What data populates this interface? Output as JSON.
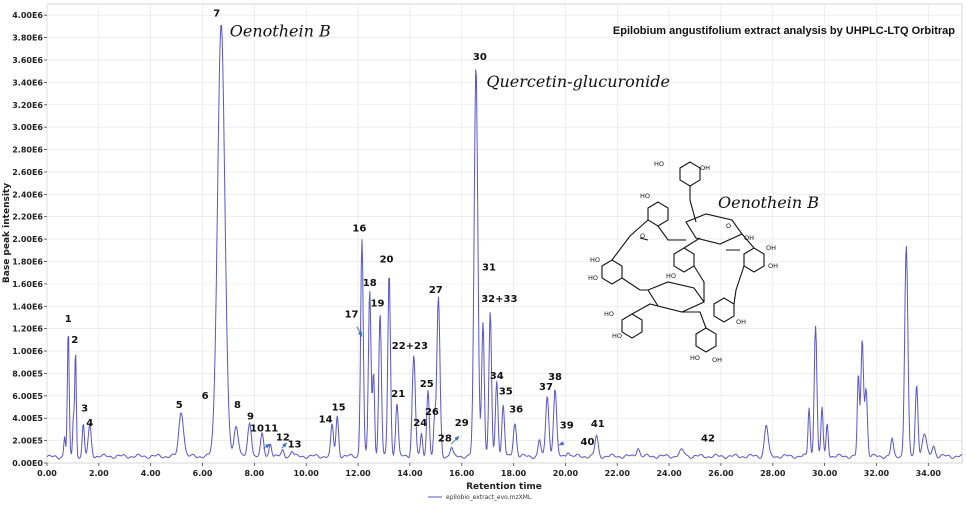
{
  "chart_data": {
    "type": "line",
    "title": "Epilobium angustifolium extract analysis by UHPLC-LTQ Orbitrap",
    "xlabel": "Retention time",
    "ylabel": "Base peak intensity",
    "xlim": [
      0,
      35.3
    ],
    "ylim": [
      0,
      4.1
    ],
    "x_ticks": [
      "0.00",
      "2.00",
      "4.00",
      "6.00",
      "8.00",
      "10.00",
      "12.00",
      "14.00",
      "16.00",
      "18.00",
      "20.00",
      "22.00",
      "24.00",
      "26.00",
      "28.00",
      "30.00",
      "32.00",
      "34.00"
    ],
    "y_ticks": [
      "0.00E0",
      "2.00E5",
      "4.00E5",
      "6.00E5",
      "8.00E5",
      "1.00E6",
      "1.20E6",
      "1.40E6",
      "1.60E6",
      "1.80E6",
      "2.00E6",
      "2.20E6",
      "2.40E6",
      "2.60E6",
      "2.80E6",
      "3.00E6",
      "3.20E6",
      "3.40E6",
      "3.60E6",
      "3.80E6",
      "4.00E6"
    ],
    "legend": [
      "epilobio_extract_evo.mzXML"
    ],
    "series_color": "#5a55c8",
    "baseline": 0.06,
    "peaks": [
      [
        0.68,
        0.18,
        0.03
      ],
      [
        0.82,
        1.12,
        0.035
      ],
      [
        1.02,
        0.35,
        0.03
      ],
      [
        1.1,
        0.95,
        0.03
      ],
      [
        1.4,
        0.28,
        0.04
      ],
      [
        1.65,
        0.27,
        0.06
      ],
      [
        5.18,
        0.4,
        0.09
      ],
      [
        6.72,
        3.86,
        0.14
      ],
      [
        7.3,
        0.28,
        0.08
      ],
      [
        7.82,
        0.3,
        0.07
      ],
      [
        8.3,
        0.19,
        0.06
      ],
      [
        8.62,
        0.12,
        0.05
      ],
      [
        9.1,
        0.05,
        0.05
      ],
      [
        9.45,
        0.05,
        0.05
      ],
      [
        11.0,
        0.28,
        0.05
      ],
      [
        11.2,
        0.36,
        0.05
      ],
      [
        12.15,
        1.95,
        0.05
      ],
      [
        12.45,
        1.48,
        0.05
      ],
      [
        12.6,
        0.75,
        0.04
      ],
      [
        12.85,
        1.28,
        0.05
      ],
      [
        13.2,
        1.65,
        0.05
      ],
      [
        13.5,
        0.48,
        0.05
      ],
      [
        14.15,
        0.9,
        0.06
      ],
      [
        14.45,
        0.2,
        0.04
      ],
      [
        14.7,
        0.6,
        0.05
      ],
      [
        14.95,
        0.3,
        0.04
      ],
      [
        15.1,
        1.42,
        0.06
      ],
      [
        15.6,
        0.08,
        0.05
      ],
      [
        16.55,
        3.48,
        0.07
      ],
      [
        16.82,
        1.2,
        0.05
      ],
      [
        17.1,
        1.28,
        0.05
      ],
      [
        17.35,
        0.68,
        0.05
      ],
      [
        17.6,
        0.45,
        0.05
      ],
      [
        18.05,
        0.3,
        0.06
      ],
      [
        19.0,
        0.15,
        0.05
      ],
      [
        19.3,
        0.55,
        0.06
      ],
      [
        19.6,
        0.6,
        0.06
      ],
      [
        20.1,
        0.05,
        0.05
      ],
      [
        21.2,
        0.18,
        0.06
      ],
      [
        22.8,
        0.08,
        0.06
      ],
      [
        24.5,
        0.05,
        0.1
      ],
      [
        27.75,
        0.28,
        0.07
      ],
      [
        29.4,
        0.44,
        0.04
      ],
      [
        29.65,
        1.18,
        0.05
      ],
      [
        29.9,
        0.44,
        0.04
      ],
      [
        30.1,
        0.3,
        0.04
      ],
      [
        31.3,
        0.72,
        0.04
      ],
      [
        31.45,
        1.05,
        0.05
      ],
      [
        31.6,
        0.6,
        0.05
      ],
      [
        32.6,
        0.15,
        0.05
      ],
      [
        33.15,
        1.88,
        0.06
      ],
      [
        33.55,
        0.65,
        0.05
      ],
      [
        33.85,
        0.2,
        0.08
      ],
      [
        34.2,
        0.1,
        0.06
      ]
    ],
    "peak_labels": [
      {
        "text": "1",
        "x": 0.82,
        "y": 1.26
      },
      {
        "text": "2",
        "x": 1.07,
        "y": 1.07
      },
      {
        "text": "3",
        "x": 1.45,
        "y": 0.46
      },
      {
        "text": "4",
        "x": 1.65,
        "y": 0.33
      },
      {
        "text": "5",
        "x": 5.1,
        "y": 0.49
      },
      {
        "text": "6",
        "x": 6.1,
        "y": 0.57
      },
      {
        "text": "7",
        "x": 6.55,
        "y": 3.99
      },
      {
        "text": "8",
        "x": 7.35,
        "y": 0.49
      },
      {
        "text": "9",
        "x": 7.85,
        "y": 0.39
      },
      {
        "text": "10",
        "x": 8.1,
        "y": 0.28
      },
      {
        "text": "11",
        "x": 8.65,
        "y": 0.28
      },
      {
        "text": "12",
        "x": 9.1,
        "y": 0.2
      },
      {
        "text": "13",
        "x": 9.55,
        "y": 0.14
      },
      {
        "text": "14",
        "x": 10.75,
        "y": 0.36
      },
      {
        "text": "15",
        "x": 11.25,
        "y": 0.47
      },
      {
        "text": "16",
        "x": 12.05,
        "y": 2.07
      },
      {
        "text": "17",
        "x": 11.75,
        "y": 1.3
      },
      {
        "text": "18",
        "x": 12.45,
        "y": 1.58
      },
      {
        "text": "19",
        "x": 12.75,
        "y": 1.4
      },
      {
        "text": "20",
        "x": 13.1,
        "y": 1.79
      },
      {
        "text": "21",
        "x": 13.55,
        "y": 0.59
      },
      {
        "text": "22+23",
        "x": 14.0,
        "y": 1.02
      },
      {
        "text": "24",
        "x": 14.4,
        "y": 0.33
      },
      {
        "text": "25",
        "x": 14.65,
        "y": 0.68
      },
      {
        "text": "26",
        "x": 14.85,
        "y": 0.43
      },
      {
        "text": "27",
        "x": 15.0,
        "y": 1.52
      },
      {
        "text": "28",
        "x": 15.35,
        "y": 0.19
      },
      {
        "text": "29",
        "x": 16.0,
        "y": 0.33
      },
      {
        "text": "30",
        "x": 16.7,
        "y": 3.6
      },
      {
        "text": "31",
        "x": 17.05,
        "y": 1.72
      },
      {
        "text": "32+33",
        "x": 17.45,
        "y": 1.44
      },
      {
        "text": "34",
        "x": 17.35,
        "y": 0.75
      },
      {
        "text": "35",
        "x": 17.7,
        "y": 0.61
      },
      {
        "text": "36",
        "x": 18.1,
        "y": 0.45
      },
      {
        "text": "37",
        "x": 19.25,
        "y": 0.65
      },
      {
        "text": "38",
        "x": 19.6,
        "y": 0.74
      },
      {
        "text": "39",
        "x": 20.05,
        "y": 0.31
      },
      {
        "text": "40",
        "x": 20.85,
        "y": 0.16
      },
      {
        "text": "41",
        "x": 21.25,
        "y": 0.32
      },
      {
        "text": "42",
        "x": 25.5,
        "y": 0.19
      }
    ],
    "arrows": [
      {
        "from": [
          11.95,
          1.22
        ],
        "to": [
          12.15,
          1.13
        ]
      },
      {
        "from": [
          8.35,
          0.13
        ],
        "to": [
          8.6,
          0.17
        ]
      },
      {
        "from": [
          9.05,
          0.13
        ],
        "to": [
          9.25,
          0.18
        ]
      },
      {
        "from": [
          15.6,
          0.17
        ],
        "to": [
          15.9,
          0.24
        ]
      },
      {
        "from": [
          19.95,
          0.18
        ],
        "to": [
          19.75,
          0.16
        ]
      }
    ],
    "annotations": [
      {
        "text": "Oenothein B",
        "x": 7.05,
        "y": 3.81
      },
      {
        "text": "Quercetin-glucuronide",
        "x": 16.95,
        "y": 3.36
      }
    ]
  },
  "structure": {
    "compound_label": "Oenothein B",
    "substituent": "HO",
    "hydroxyl": "OH",
    "oxygen": "O"
  }
}
